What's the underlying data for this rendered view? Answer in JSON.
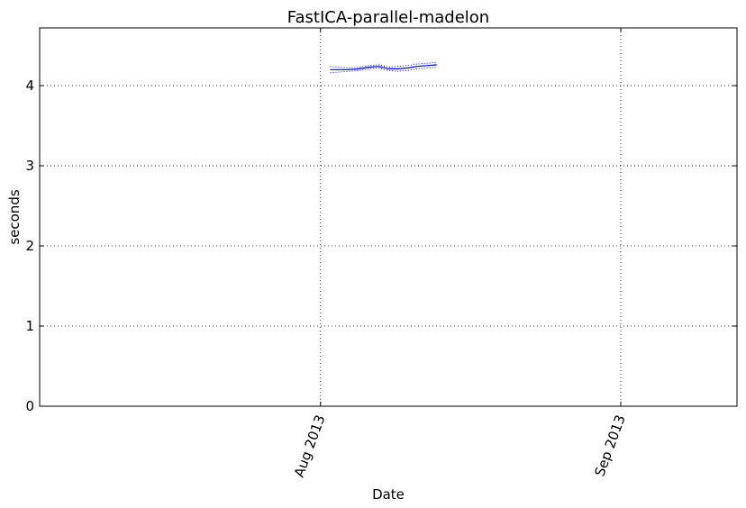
{
  "chart_data": {
    "type": "line",
    "title": "FastICA-parallel-madelon",
    "xlabel": "Date",
    "ylabel": "seconds",
    "x_axis": "date",
    "xlim": [
      "2013-07-03",
      "2013-09-13"
    ],
    "ylim": [
      0,
      4.72
    ],
    "yticks": [
      0,
      1,
      2,
      3,
      4
    ],
    "xticks": [
      {
        "date": "2013-08-01",
        "label": "Aug 2013"
      },
      {
        "date": "2013-09-01",
        "label": "Sep 2013"
      }
    ],
    "grid": true,
    "series": [
      {
        "color": "#0000ff",
        "style": "solid",
        "x": [
          "2013-08-02",
          "2013-08-03",
          "2013-08-04",
          "2013-08-05",
          "2013-08-06",
          "2013-08-07",
          "2013-08-08",
          "2013-08-09",
          "2013-08-10",
          "2013-08-11",
          "2013-08-12",
          "2013-08-13"
        ],
        "y": [
          4.2,
          4.2,
          4.2,
          4.21,
          4.23,
          4.24,
          4.21,
          4.21,
          4.22,
          4.24,
          4.25,
          4.26
        ]
      },
      {
        "color": "#0000ff",
        "style": "dotted",
        "x": [
          "2013-08-02",
          "2013-08-03",
          "2013-08-04",
          "2013-08-05",
          "2013-08-06",
          "2013-08-07",
          "2013-08-08",
          "2013-08-09",
          "2013-08-10",
          "2013-08-11",
          "2013-08-12",
          "2013-08-13"
        ],
        "y": [
          4.24,
          4.23,
          4.22,
          4.23,
          4.25,
          4.26,
          4.23,
          4.24,
          4.25,
          4.27,
          4.28,
          4.29
        ]
      },
      {
        "color": "#0000ff",
        "style": "dotted",
        "x": [
          "2013-08-02",
          "2013-08-03",
          "2013-08-04",
          "2013-08-05",
          "2013-08-06",
          "2013-08-07",
          "2013-08-08",
          "2013-08-09",
          "2013-08-10",
          "2013-08-11",
          "2013-08-12",
          "2013-08-13"
        ],
        "y": [
          4.16,
          4.17,
          4.18,
          4.19,
          4.21,
          4.22,
          4.19,
          4.18,
          4.19,
          4.21,
          4.22,
          4.23
        ]
      }
    ]
  }
}
